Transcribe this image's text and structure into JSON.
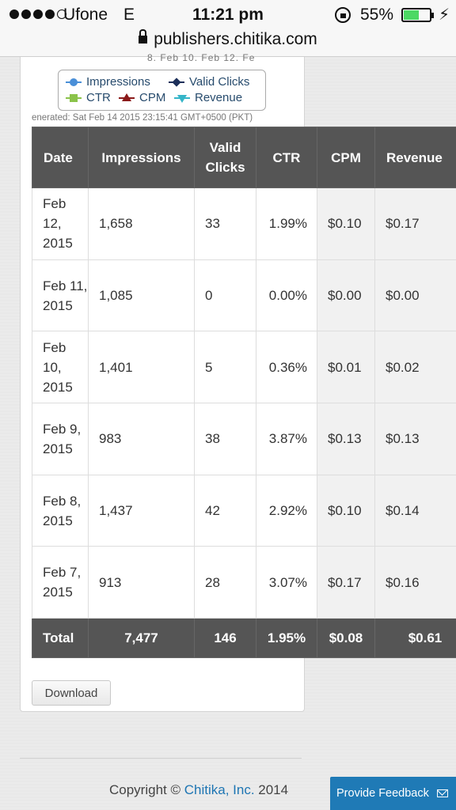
{
  "status_bar": {
    "carrier": "Ufone",
    "network": "E",
    "time": "11:21 pm",
    "battery_percent": "55%",
    "battery_level": 0.55,
    "charging_icon": "bolt-icon"
  },
  "url_bar": {
    "domain": "publishers.chitika.com"
  },
  "chart_cutoff_ticks": "8. Feb     10. Feb     12. Fe",
  "legend": {
    "items": [
      {
        "label": "Impressions",
        "color": "#4a8fd8",
        "marker": "circle"
      },
      {
        "label": "Valid Clicks",
        "color": "#1c2f5a",
        "marker": "diamond"
      },
      {
        "label": "CTR",
        "color": "#8bc34a",
        "marker": "square"
      },
      {
        "label": "CPM",
        "color": "#8b1a1a",
        "marker": "triangle-up"
      },
      {
        "label": "Revenue",
        "color": "#35b5c8",
        "marker": "triangle-down"
      }
    ]
  },
  "generated_text": "enerated: Sat Feb 14 2015 23:15:41 GMT+0500 (PKT)",
  "table": {
    "headers": {
      "date": "Date",
      "impressions": "Impressions",
      "valid_clicks": "Valid Clicks",
      "ctr": "CTR",
      "cpm": "CPM",
      "revenue": "Revenue"
    },
    "rows": [
      {
        "date": "Feb 12, 2015",
        "impressions": "1,658",
        "valid_clicks": "33",
        "ctr": "1.99%",
        "cpm": "$0.10",
        "revenue": "$0.17"
      },
      {
        "date": "Feb 11, 2015",
        "impressions": "1,085",
        "valid_clicks": "0",
        "ctr": "0.00%",
        "cpm": "$0.00",
        "revenue": "$0.00"
      },
      {
        "date": "Feb 10, 2015",
        "impressions": "1,401",
        "valid_clicks": "5",
        "ctr": "0.36%",
        "cpm": "$0.01",
        "revenue": "$0.02"
      },
      {
        "date": "Feb 9, 2015",
        "impressions": "983",
        "valid_clicks": "38",
        "ctr": "3.87%",
        "cpm": "$0.13",
        "revenue": "$0.13"
      },
      {
        "date": "Feb 8, 2015",
        "impressions": "1,437",
        "valid_clicks": "42",
        "ctr": "2.92%",
        "cpm": "$0.10",
        "revenue": "$0.14"
      },
      {
        "date": "Feb 7, 2015",
        "impressions": "913",
        "valid_clicks": "28",
        "ctr": "3.07%",
        "cpm": "$0.17",
        "revenue": "$0.16"
      }
    ],
    "totals": {
      "label": "Total",
      "impressions": "7,477",
      "valid_clicks": "146",
      "ctr": "1.95%",
      "cpm": "$0.08",
      "revenue": "$0.61"
    }
  },
  "download_button": "Download",
  "footer": {
    "copyright_prefix": "Copyright © ",
    "company": "Chitika, Inc.",
    "year": " 2014"
  },
  "feedback_button": {
    "label": "Provide Feedback",
    "icon": "mail-icon"
  }
}
